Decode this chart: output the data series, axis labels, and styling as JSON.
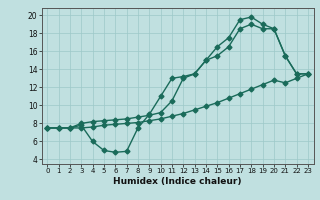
{
  "xlabel": "Humidex (Indice chaleur)",
  "background_color": "#c0e0e0",
  "grid_color": "#9dc8c8",
  "line_color": "#1a6b5a",
  "xlim": [
    -0.5,
    23.5
  ],
  "ylim": [
    3.5,
    20.8
  ],
  "xticks": [
    0,
    1,
    2,
    3,
    4,
    5,
    6,
    7,
    8,
    9,
    10,
    11,
    12,
    13,
    14,
    15,
    16,
    17,
    18,
    19,
    20,
    21,
    22,
    23
  ],
  "yticks": [
    4,
    6,
    8,
    10,
    12,
    14,
    16,
    18,
    20
  ],
  "line1_x": [
    0,
    1,
    2,
    3,
    4,
    5,
    6,
    7,
    8,
    9,
    10,
    11,
    12,
    13,
    14,
    15,
    16,
    17,
    18,
    19,
    20,
    21,
    22,
    23
  ],
  "line1_y": [
    7.5,
    7.5,
    7.5,
    7.8,
    6.0,
    5.0,
    4.8,
    4.9,
    7.5,
    9.0,
    11.0,
    13.0,
    13.2,
    13.5,
    15.0,
    16.5,
    17.5,
    19.5,
    19.8,
    19.0,
    18.5,
    15.5,
    13.5,
    13.5
  ],
  "line2_x": [
    0,
    1,
    2,
    3,
    4,
    5,
    6,
    7,
    8,
    9,
    10,
    11,
    12,
    13,
    14,
    15,
    16,
    17,
    18,
    19,
    20,
    21,
    22,
    23
  ],
  "line2_y": [
    7.5,
    7.5,
    7.5,
    8.0,
    8.2,
    8.3,
    8.4,
    8.5,
    8.7,
    8.9,
    9.2,
    10.5,
    13.0,
    13.5,
    15.0,
    15.5,
    16.5,
    18.5,
    19.0,
    18.5,
    18.5,
    15.5,
    13.5,
    13.5
  ],
  "line3_x": [
    0,
    1,
    2,
    3,
    4,
    5,
    6,
    7,
    8,
    9,
    10,
    11,
    12,
    13,
    14,
    15,
    16,
    17,
    18,
    19,
    20,
    21,
    22,
    23
  ],
  "line3_y": [
    7.5,
    7.5,
    7.5,
    7.5,
    7.6,
    7.8,
    7.9,
    8.0,
    8.1,
    8.3,
    8.5,
    8.8,
    9.1,
    9.5,
    9.9,
    10.3,
    10.8,
    11.3,
    11.8,
    12.3,
    12.8,
    12.5,
    13.0,
    13.5
  ]
}
